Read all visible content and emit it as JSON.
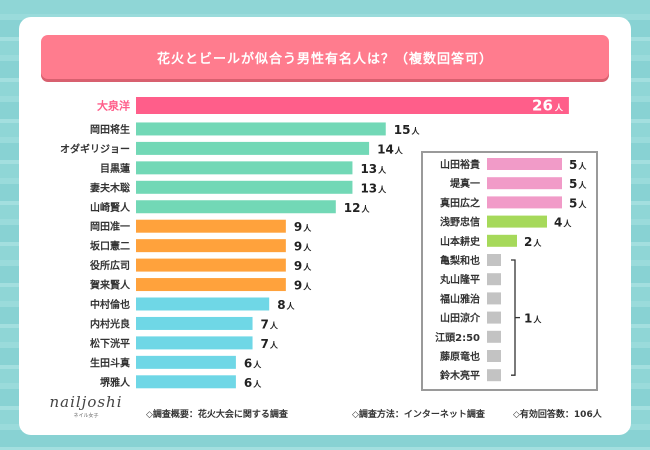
{
  "title": "花火とビールが似合う男性有名人は？（複数回答可）",
  "unit": "人",
  "logo": {
    "main": "nailjoshi",
    "sub": "ネイル女子"
  },
  "footer": {
    "overview": "◇調査概要：花火大会に関する調査",
    "method": "◇調査方法：インターネット調査",
    "responses": "◇有効回答数：106人"
  },
  "colors": {
    "top": "#ff5e8a",
    "green": "#72d8b6",
    "orange": "#ffa23c",
    "blue": "#6fd7e6",
    "pink": "#f19bc8",
    "lime": "#a6d95a",
    "gray": "#c3c3c3"
  },
  "chart_data": {
    "type": "bar",
    "orientation": "horizontal",
    "title": "花火とビールが似合う男性有名人は？（複数回答可）",
    "unit": "人",
    "main": [
      {
        "name": "大泉洋",
        "value": 26,
        "color": "top"
      },
      {
        "name": "岡田将生",
        "value": 15,
        "color": "green"
      },
      {
        "name": "オダギリジョー",
        "value": 14,
        "color": "green"
      },
      {
        "name": "目黒蓮",
        "value": 13,
        "color": "green"
      },
      {
        "name": "妻夫木聡",
        "value": 13,
        "color": "green"
      },
      {
        "name": "山崎賢人",
        "value": 12,
        "color": "green"
      },
      {
        "name": "岡田准一",
        "value": 9,
        "color": "orange"
      },
      {
        "name": "坂口憲二",
        "value": 9,
        "color": "orange"
      },
      {
        "name": "役所広司",
        "value": 9,
        "color": "orange"
      },
      {
        "name": "賀来賢人",
        "value": 9,
        "color": "orange"
      },
      {
        "name": "中村倫也",
        "value": 8,
        "color": "blue"
      },
      {
        "name": "内村光良",
        "value": 7,
        "color": "blue"
      },
      {
        "name": "松下洸平",
        "value": 7,
        "color": "blue"
      },
      {
        "name": "生田斗真",
        "value": 6,
        "color": "blue"
      },
      {
        "name": "堺雅人",
        "value": 6,
        "color": "blue"
      }
    ],
    "side": [
      {
        "name": "山田裕貴",
        "value": 5,
        "color": "pink"
      },
      {
        "name": "堤真一",
        "value": 5,
        "color": "pink"
      },
      {
        "name": "真田広之",
        "value": 5,
        "color": "pink"
      },
      {
        "name": "浅野忠信",
        "value": 4,
        "color": "lime"
      },
      {
        "name": "山本耕史",
        "value": 2,
        "color": "lime"
      },
      {
        "name": "亀梨和也",
        "value": 1,
        "color": "gray"
      },
      {
        "name": "丸山隆平",
        "value": 1,
        "color": "gray"
      },
      {
        "name": "福山雅治",
        "value": 1,
        "color": "gray"
      },
      {
        "name": "山田涼介",
        "value": 1,
        "color": "gray"
      },
      {
        "name": "江頭2:50",
        "value": 1,
        "color": "gray"
      },
      {
        "name": "藤原竜也",
        "value": 1,
        "color": "gray"
      },
      {
        "name": "鈴木亮平",
        "value": 1,
        "color": "gray"
      }
    ],
    "grouped_label": "1人"
  }
}
